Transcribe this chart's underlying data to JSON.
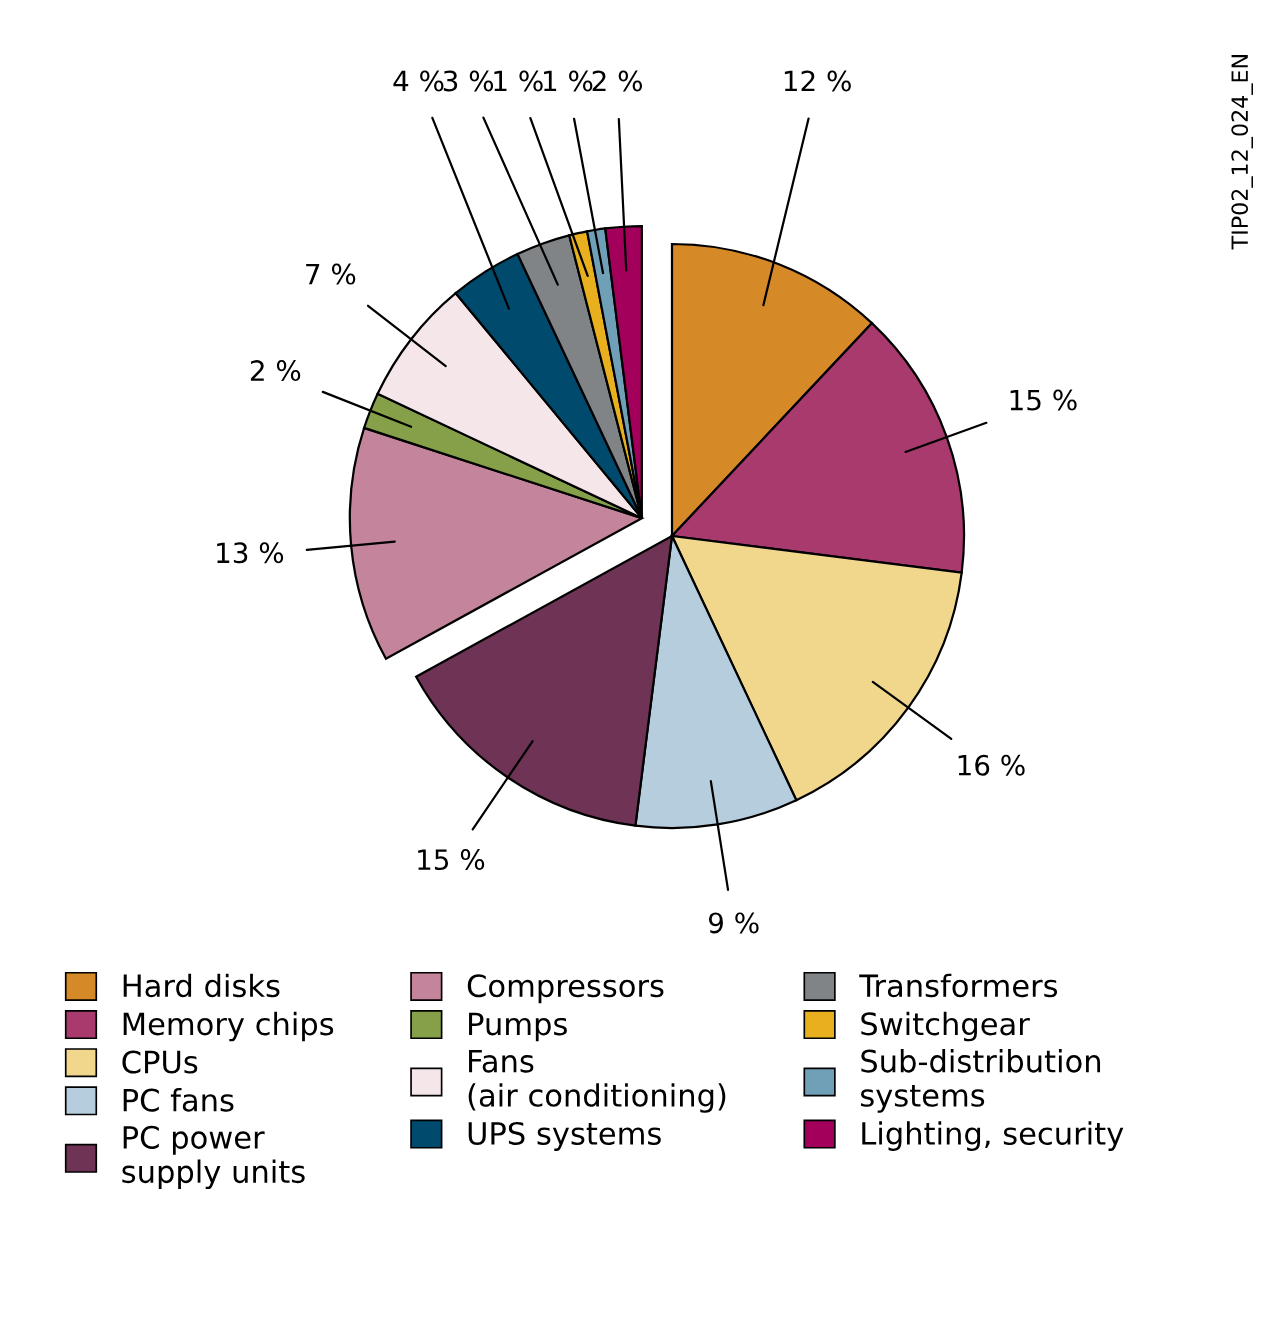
{
  "chart_data": {
    "type": "pie",
    "categories": [
      "Hard disks",
      "Memory chips",
      "CPUs",
      "PC fans",
      "PC power\nsupply units",
      "Compressors",
      "Pumps",
      "Fans\n(air conditioning)",
      "UPS systems",
      "Transformers",
      "Switchgear",
      "Sub-distribution\nsystems",
      "Lighting, security"
    ],
    "values": [
      12,
      15,
      16,
      9,
      15,
      13,
      2,
      7,
      4,
      3,
      1,
      1,
      2
    ],
    "value_labels": [
      "12 %",
      "15 %",
      "16 %",
      "9 %",
      "15 %",
      "13 %",
      "2 %",
      "7 %",
      "4 %",
      "3 %",
      "1 %",
      "1 %",
      "2 %"
    ],
    "colors": [
      "#d68a27",
      "#a83a6e",
      "#f0d78c",
      "#b5cddc",
      "#6e3355",
      "#c4849c",
      "#86a04a",
      "#f5e6ea",
      "#004a6e",
      "#808487",
      "#e8b01e",
      "#6fa0b8",
      "#a3005c"
    ],
    "legend": "bottom",
    "annotations": [
      "TIP02_12_024_EN"
    ]
  }
}
